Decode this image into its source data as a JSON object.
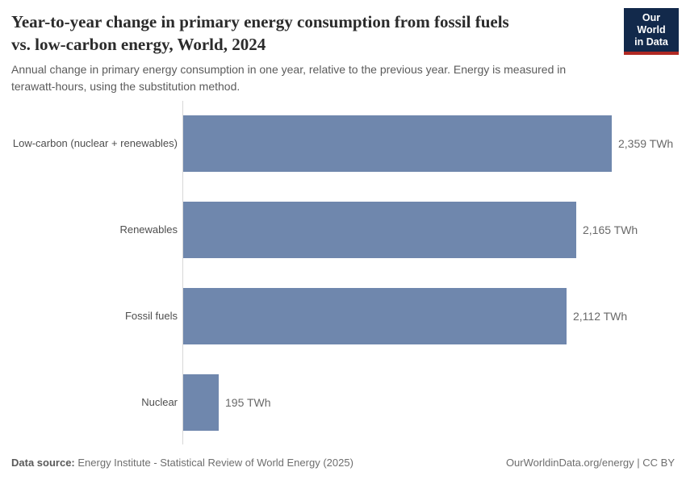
{
  "header": {
    "title_line1": "Year-to-year change in primary energy consumption from fossil fuels",
    "title_line2": "vs. low-carbon energy, World, 2024",
    "subtitle": "Annual change in primary energy consumption in one year, relative to the previous year. Energy is measured in terawatt-hours, using the substitution method."
  },
  "logo": {
    "line1": "Our World",
    "line2": "in Data"
  },
  "chart_data": {
    "type": "bar",
    "orientation": "horizontal",
    "title": "Year-to-year change in primary energy consumption from fossil fuels vs. low-carbon energy, World, 2024",
    "categories": [
      "Low-carbon (nuclear + renewables)",
      "Renewables",
      "Fossil fuels",
      "Nuclear"
    ],
    "values": [
      2359,
      2165,
      2112,
      195
    ],
    "value_labels": [
      "2,359 TWh",
      "2,165 TWh",
      "2,112 TWh",
      "195 TWh"
    ],
    "unit": "TWh",
    "xlim": [
      0,
      2359
    ],
    "grid": false,
    "legend": "none",
    "bar_color": "#6f87ad"
  },
  "footer": {
    "data_source_label": "Data source:",
    "data_source_value": "Energy Institute - Statistical Review of World Energy (2025)",
    "attribution": "OurWorldinData.org/energy | CC BY"
  },
  "colors": {
    "bar": "#6f87ad",
    "axis_line": "#d7d7d7",
    "logo_background": "#12294b",
    "logo_accent_red": "#b02923",
    "title_text": "#2b2b2b",
    "subtitle_text": "#5b5b5b",
    "category_label_text": "#4e4e4e",
    "value_label_text": "#696969",
    "footer_text": "#6e6e6e"
  }
}
